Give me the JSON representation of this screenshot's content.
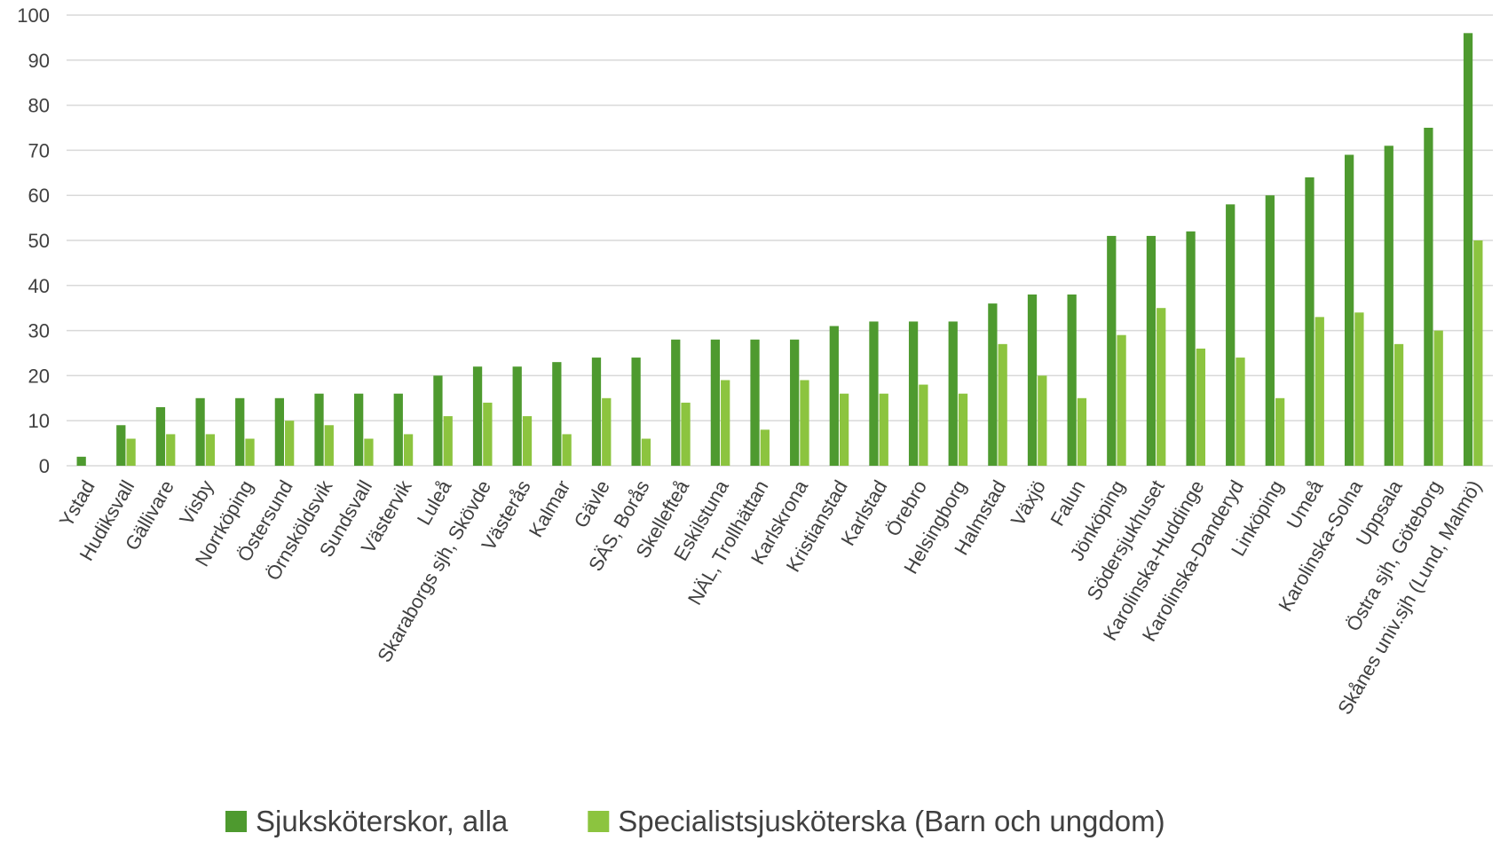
{
  "chart_data": {
    "type": "bar",
    "categories": [
      "Ystad",
      "Hudiksvall",
      "Gällivare",
      "Visby",
      "Norrköping",
      "Östersund",
      "Örnsköldsvik",
      "Sundsvall",
      "Västervik",
      "Luleå",
      "Skaraborgs sjh, Skövde",
      "Västerås",
      "Kalmar",
      "Gävle",
      "SÄS, Borås",
      "Skellefteå",
      "Eskilstuna",
      "NÄL, Trollhättan",
      "Karlskrona",
      "Kristianstad",
      "Karlstad",
      "Örebro",
      "Helsingborg",
      "Halmstad",
      "Växjö",
      "Falun",
      "Jönköping",
      "Södersjukhuset",
      "Karolinska-Huddinge",
      "Karolinska-Danderyd",
      "Linköping",
      "Umeå",
      "Karolinska-Solna",
      "Uppsala",
      "Östra sjh, Göteborg",
      "Skånes univ.sjh (Lund, Malmö)"
    ],
    "series": [
      {
        "name": "Sjuksköterskor, alla",
        "color": "#4e9a2f",
        "values": [
          2,
          9,
          13,
          15,
          15,
          15,
          16,
          16,
          16,
          20,
          22,
          22,
          23,
          24,
          24,
          28,
          28,
          28,
          28,
          31,
          32,
          32,
          32,
          36,
          38,
          38,
          51,
          51,
          52,
          58,
          60,
          64,
          69,
          71,
          75,
          96
        ]
      },
      {
        "name": "Specialistsjusköterska (Barn och ungdom)",
        "color": "#8cc43f",
        "values": [
          0,
          6,
          7,
          7,
          6,
          10,
          9,
          6,
          7,
          11,
          14,
          11,
          7,
          15,
          6,
          14,
          19,
          8,
          19,
          16,
          16,
          18,
          16,
          27,
          20,
          15,
          29,
          35,
          26,
          24,
          15,
          33,
          34,
          27,
          30,
          50
        ]
      }
    ],
    "ylim": [
      0,
      100
    ],
    "yticks": [
      0,
      10,
      20,
      30,
      40,
      50,
      60,
      70,
      80,
      90,
      100
    ],
    "grid": true,
    "legend": "bottom"
  }
}
